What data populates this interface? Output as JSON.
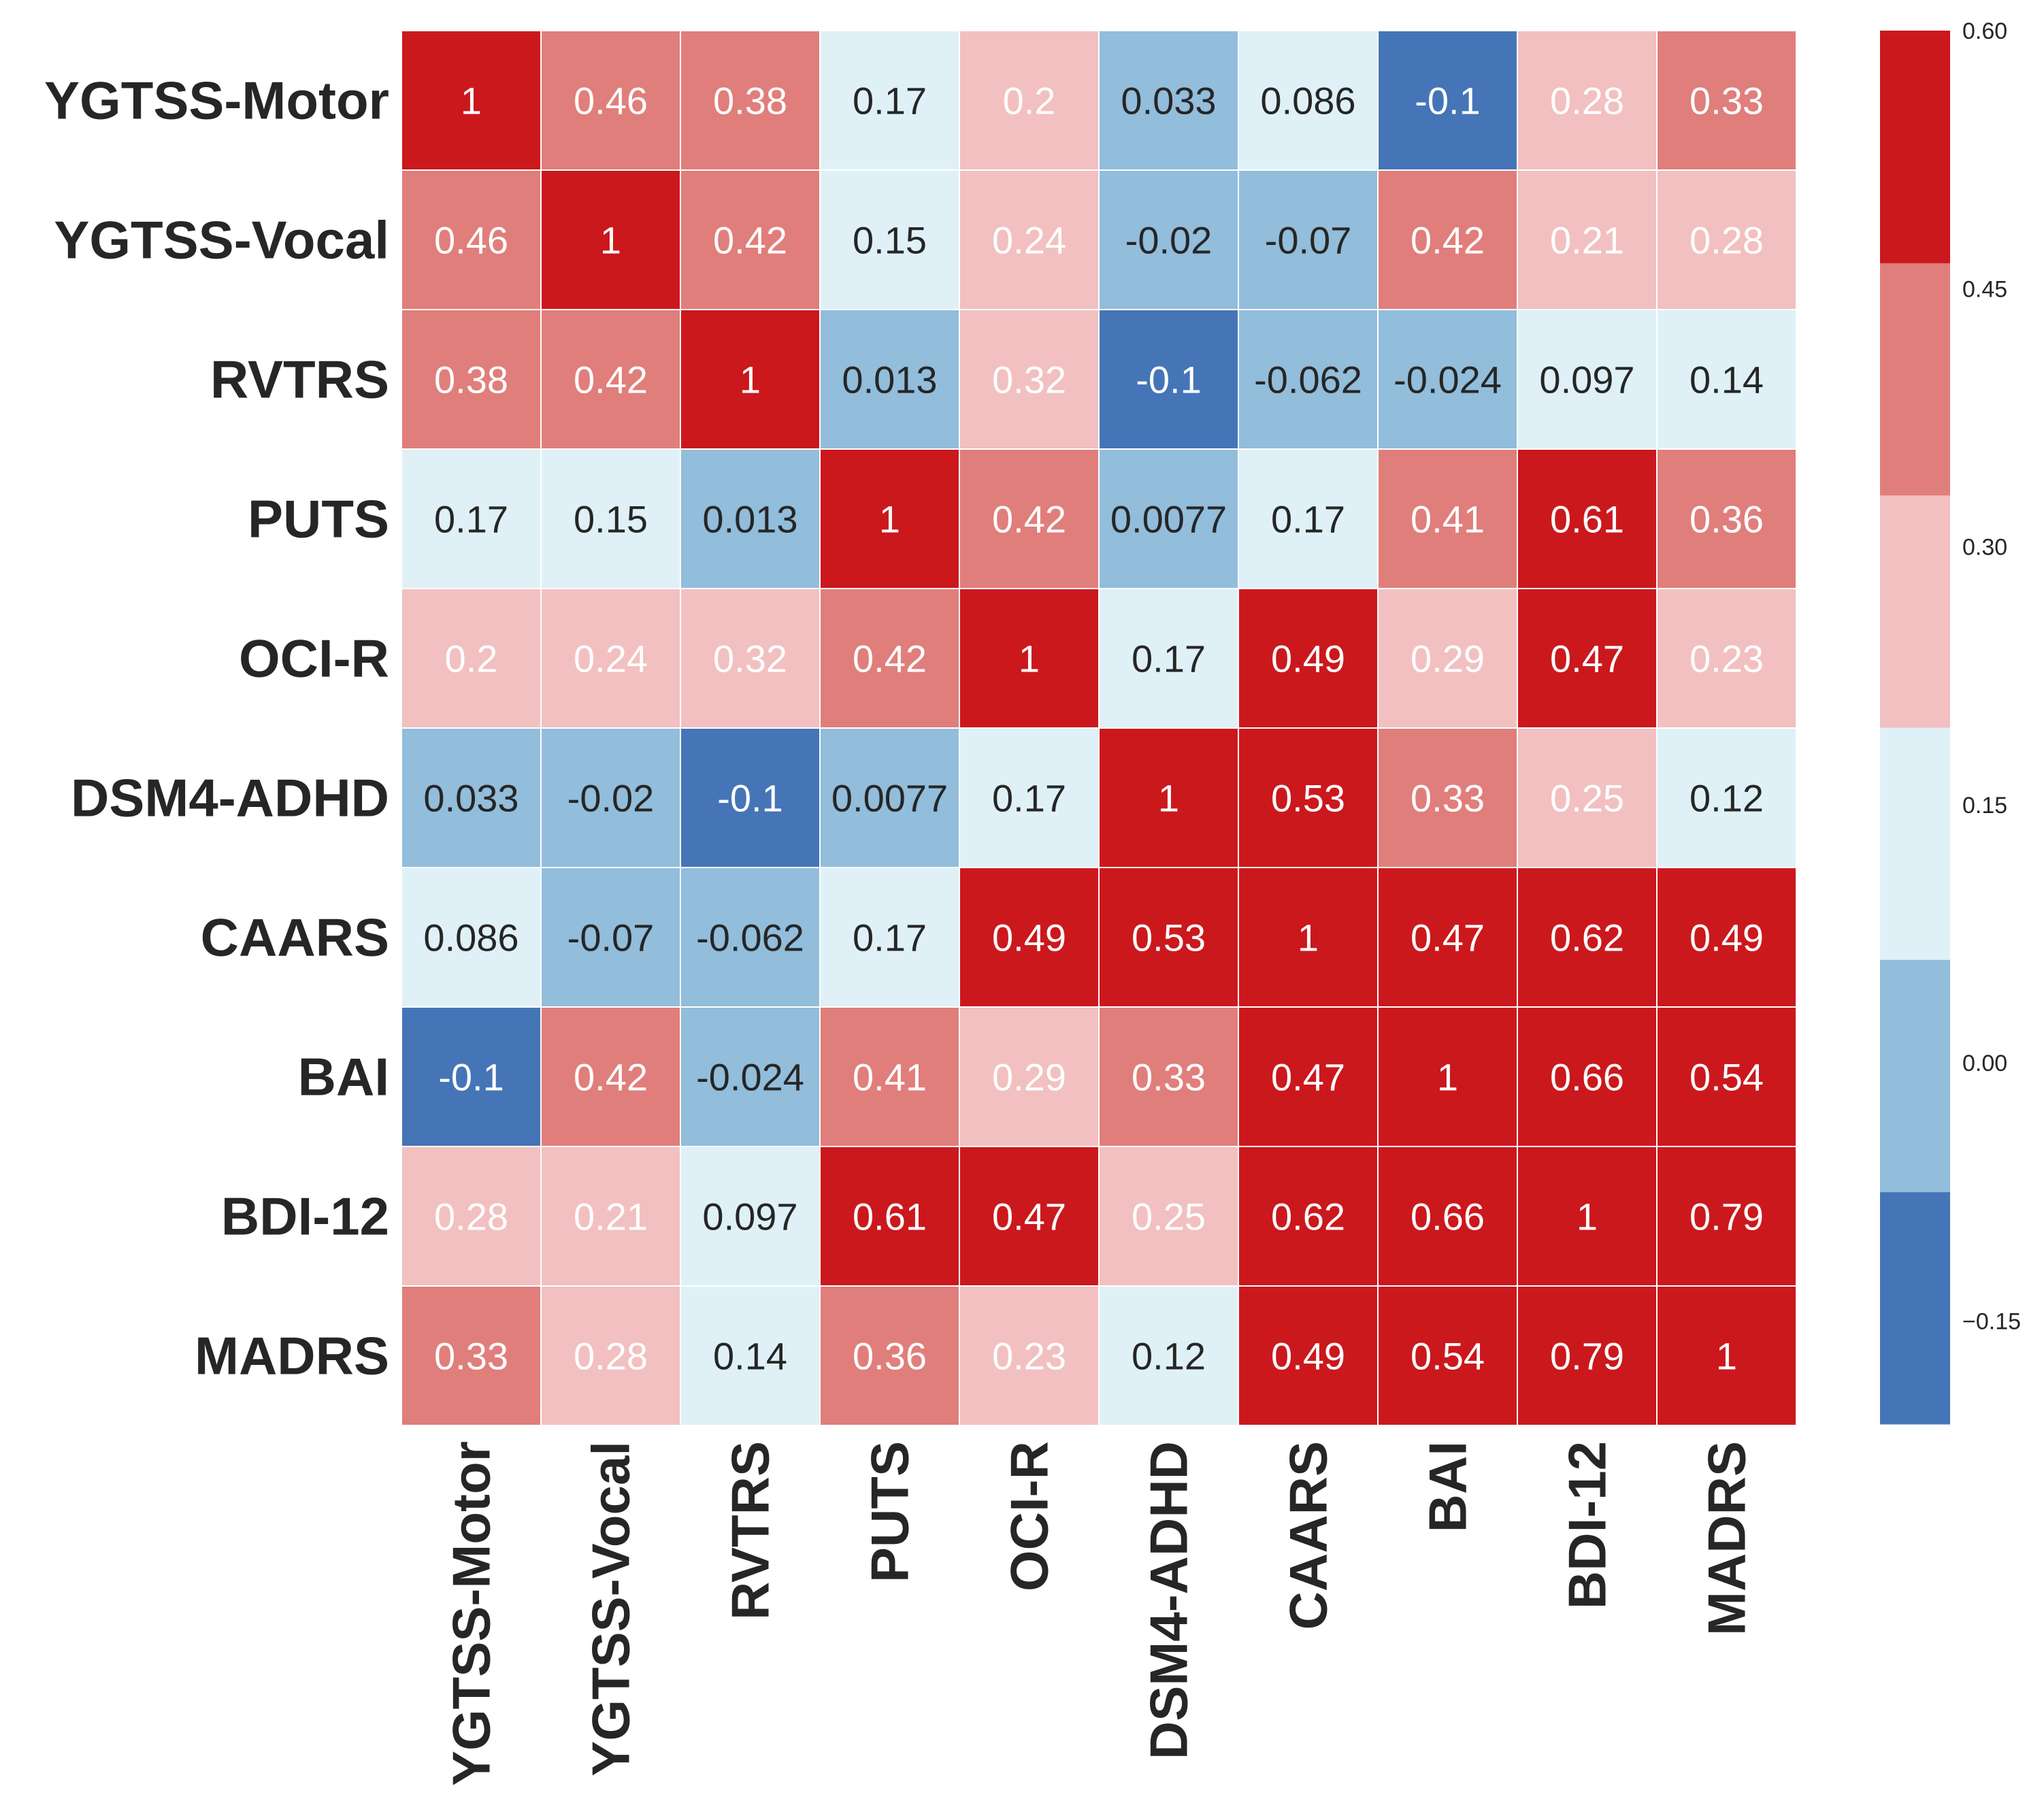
{
  "chart_data": {
    "type": "heatmap",
    "title": "",
    "row_labels": [
      "YGTSS-Motor",
      "YGTSS-Vocal",
      "RVTRS",
      "PUTS",
      "OCI-R",
      "DSM4-ADHD",
      "CAARS",
      "BAI",
      "BDI-12",
      "MADRS"
    ],
    "col_labels": [
      "YGTSS-Motor",
      "YGTSS-Vocal",
      "RVTRS",
      "PUTS",
      "OCI-R",
      "DSM4-ADHD",
      "CAARS",
      "BAI",
      "BDI-12",
      "MADRS"
    ],
    "values": [
      [
        "1",
        "0.46",
        "0.38",
        "0.17",
        "0.2",
        "0.033",
        "0.086",
        "-0.1",
        "0.28",
        "0.33"
      ],
      [
        "0.46",
        "1",
        "0.42",
        "0.15",
        "0.24",
        "-0.02",
        "-0.07",
        "0.42",
        "0.21",
        "0.28"
      ],
      [
        "0.38",
        "0.42",
        "1",
        "0.013",
        "0.32",
        "-0.1",
        "-0.062",
        "-0.024",
        "0.097",
        "0.14"
      ],
      [
        "0.17",
        "0.15",
        "0.013",
        "1",
        "0.42",
        "0.0077",
        "0.17",
        "0.41",
        "0.61",
        "0.36"
      ],
      [
        "0.2",
        "0.24",
        "0.32",
        "0.42",
        "1",
        "0.17",
        "0.49",
        "0.29",
        "0.47",
        "0.23"
      ],
      [
        "0.033",
        "-0.02",
        "-0.1",
        "0.0077",
        "0.17",
        "1",
        "0.53",
        "0.33",
        "0.25",
        "0.12"
      ],
      [
        "0.086",
        "-0.07",
        "-0.062",
        "0.17",
        "0.49",
        "0.53",
        "1",
        "0.47",
        "0.62",
        "0.49"
      ],
      [
        "-0.1",
        "0.42",
        "-0.024",
        "0.41",
        "0.29",
        "0.33",
        "0.47",
        "1",
        "0.66",
        "0.54"
      ],
      [
        "0.28",
        "0.21",
        "0.097",
        "0.61",
        "0.47",
        "0.25",
        "0.62",
        "0.66",
        "1",
        "0.79"
      ],
      [
        "0.33",
        "0.28",
        "0.14",
        "0.36",
        "0.23",
        "0.12",
        "0.49",
        "0.54",
        "0.79",
        "1"
      ]
    ],
    "colorbar": {
      "vmin": -0.21,
      "vmax": 0.6,
      "ticks": [
        "0.60",
        "0.45",
        "0.30",
        "0.15",
        "0.00",
        "−0.15"
      ],
      "tick_values": [
        0.6,
        0.45,
        0.3,
        0.15,
        0.0,
        -0.15
      ],
      "colors": [
        "#4575b7",
        "#92bddb",
        "#dff1f7",
        "#f2c0c0",
        "#e07e7b",
        "#cb181d"
      ]
    },
    "dark_text_color": "#262626",
    "light_text_color": "#ffffff",
    "grid_line_color": "#ffffff"
  }
}
